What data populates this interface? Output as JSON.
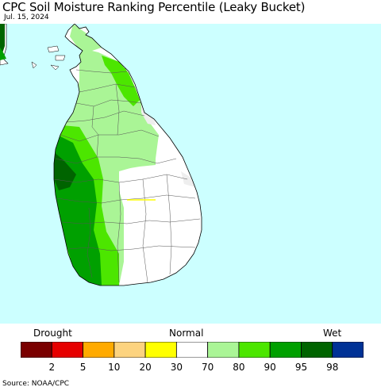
{
  "title": "CPC Soil Moisture Ranking Percentile (Leaky Bucket)",
  "date": "Jul. 15, 2024",
  "legend": {
    "left_label": "Drought",
    "center_label": "Normal",
    "right_label": "Wet",
    "colors": [
      "#7a0000",
      "#e60000",
      "#ffaa00",
      "#fcd37f",
      "#ffff00",
      "#ffffff",
      "#aaf596",
      "#4ce600",
      "#00a000",
      "#006400",
      "#003296"
    ],
    "ticks": [
      "2",
      "5",
      "10",
      "20",
      "30",
      "70",
      "80",
      "90",
      "95",
      "98"
    ]
  },
  "map": {
    "ocean_color": "#ccffff",
    "land_color": "#ffffff"
  },
  "source": "Source: NOAA/CPC"
}
